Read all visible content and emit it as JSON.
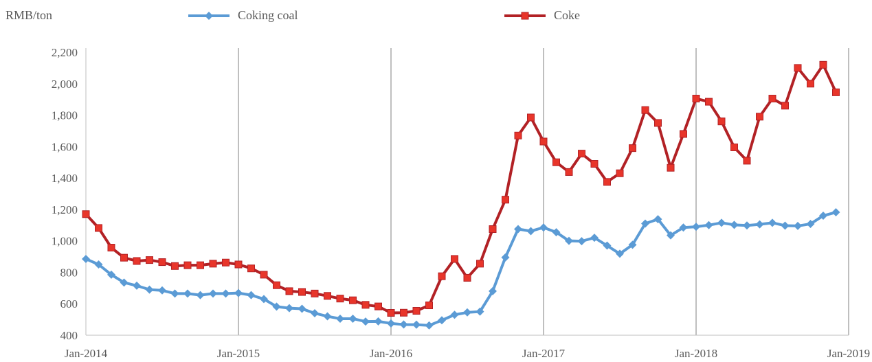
{
  "chart_data": {
    "type": "line",
    "y_unit_label": "RMB/ton",
    "ylim": [
      400,
      2200
    ],
    "y_ticks": [
      400,
      600,
      800,
      1000,
      1200,
      1400,
      1600,
      1800,
      2000,
      2200
    ],
    "y_tick_labels": [
      "400",
      "600",
      "800",
      "1,000",
      "1,200",
      "1,400",
      "1,600",
      "1,800",
      "2,000",
      "2,200"
    ],
    "x_tick_labels": [
      "Jan-2014",
      "Jan-2015",
      "Jan-2016",
      "Jan-2017",
      "Jan-2018",
      "Jan-2019"
    ],
    "grid": "vertical lines at each year",
    "legend_position": "top",
    "x_months": [
      "2014-01",
      "2014-02",
      "2014-03",
      "2014-04",
      "2014-05",
      "2014-06",
      "2014-07",
      "2014-08",
      "2014-09",
      "2014-10",
      "2014-11",
      "2014-12",
      "2015-01",
      "2015-02",
      "2015-03",
      "2015-04",
      "2015-05",
      "2015-06",
      "2015-07",
      "2015-08",
      "2015-09",
      "2015-10",
      "2015-11",
      "2015-12",
      "2016-01",
      "2016-02",
      "2016-03",
      "2016-04",
      "2016-05",
      "2016-06",
      "2016-07",
      "2016-08",
      "2016-09",
      "2016-10",
      "2016-11",
      "2016-12",
      "2017-01",
      "2017-02",
      "2017-03",
      "2017-04",
      "2017-05",
      "2017-06",
      "2017-07",
      "2017-08",
      "2017-09",
      "2017-10",
      "2017-11",
      "2017-12",
      "2018-01",
      "2018-02",
      "2018-03",
      "2018-04",
      "2018-05",
      "2018-06",
      "2018-07",
      "2018-08",
      "2018-09",
      "2018-10",
      "2018-11",
      "2018-12"
    ],
    "series": [
      {
        "name": "Coking coal",
        "color": "#5B9BD5",
        "marker": "diamond",
        "values": [
          885,
          850,
          785,
          735,
          715,
          690,
          685,
          665,
          665,
          655,
          665,
          665,
          668,
          655,
          630,
          582,
          572,
          568,
          540,
          520,
          505,
          505,
          487,
          488,
          475,
          468,
          467,
          462,
          495,
          530,
          545,
          550,
          680,
          895,
          1075,
          1062,
          1085,
          1055,
          1000,
          998,
          1020,
          970,
          918,
          975,
          1110,
          1138,
          1035,
          1085,
          1090,
          1100,
          1115,
          1102,
          1098,
          1105,
          1115,
          1097,
          1095,
          1108,
          1160,
          1182
        ]
      },
      {
        "name": "Coke",
        "color": "#B22125",
        "marker_fill": "#E8352A",
        "marker": "square",
        "values": [
          1170,
          1082,
          957,
          893,
          872,
          878,
          865,
          840,
          845,
          845,
          855,
          862,
          850,
          825,
          785,
          718,
          680,
          675,
          665,
          650,
          633,
          622,
          593,
          583,
          542,
          543,
          555,
          590,
          775,
          885,
          765,
          855,
          1075,
          1262,
          1670,
          1785,
          1632,
          1500,
          1438,
          1555,
          1490,
          1375,
          1430,
          1590,
          1832,
          1750,
          1465,
          1680,
          1905,
          1885,
          1760,
          1595,
          1510,
          1790,
          1905,
          1860,
          2100,
          2000,
          2120,
          1945
        ]
      }
    ]
  }
}
